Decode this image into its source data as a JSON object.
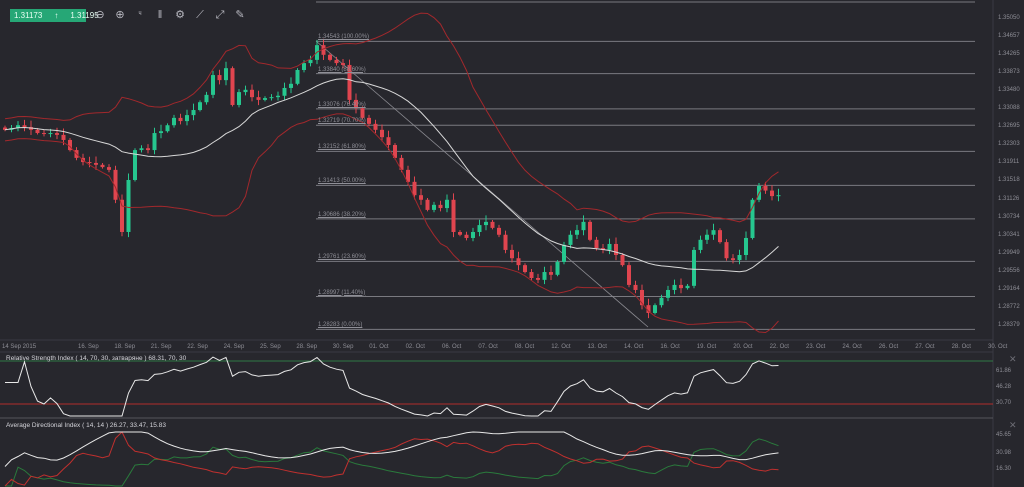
{
  "toolbar": {
    "bid": "1.31173",
    "arrow": "↑",
    "ask": "1.31195",
    "tools": [
      "zoom-out-icon",
      "zoom-in-icon",
      "indicator-icon",
      "candles-icon",
      "gear-icon",
      "chart-draw-icon",
      "line-tool-icon",
      "eraser-icon"
    ]
  },
  "colors": {
    "background": "#27272d",
    "up": "#26c78f",
    "down": "#e0454f",
    "band": "#a2282c",
    "sma": "#d8d8d8",
    "grid": "#7a7a80",
    "rsi_upper": "#2f7a45",
    "rsi_lower": "#b12c2c",
    "adx": "#e8e8e8",
    "di_plus": "#2a7a3c",
    "di_minus": "#c0302e",
    "accent": "#26a776"
  },
  "chart_data": [
    {
      "type": "candlestick",
      "price_axis_ticks": [
        "1.35050",
        "1.34657",
        "1.34265",
        "1.33873",
        "1.33480",
        "1.33088",
        "1.32695",
        "1.32303",
        "1.31911",
        "1.31518",
        "1.31126",
        "1.30734",
        "1.30341",
        "1.29949",
        "1.29556",
        "1.29164",
        "1.28772",
        "1.28379"
      ],
      "date_axis_ticks": [
        "14 Sep 2015",
        "16. Sep",
        "18. Sep",
        "21. Sep",
        "22. Sep",
        "24. Sep",
        "25. Sep",
        "28. Sep",
        "30. Sep",
        "01. Oct",
        "02. Oct",
        "06. Oct",
        "07. Oct",
        "08. Oct",
        "12. Oct",
        "13. Oct",
        "14. Oct",
        "16. Oct",
        "19. Oct",
        "20. Oct",
        "22. Oct",
        "23. Oct",
        "24. Oct",
        "26. Oct",
        "27. Oct",
        "28. Oct",
        "30. Oct"
      ],
      "ylim": [
        1.283,
        1.354
      ],
      "closes": [
        1.3262,
        1.3266,
        1.3272,
        1.3268,
        1.3262,
        1.3255,
        1.3253,
        1.3255,
        1.3251,
        1.324,
        1.3218,
        1.3201,
        1.3192,
        1.319,
        1.3186,
        1.3181,
        1.3175,
        1.311,
        1.304,
        1.3153,
        1.3218,
        1.3222,
        1.3218,
        1.3255,
        1.3259,
        1.3272,
        1.3288,
        1.3281,
        1.3294,
        1.3305,
        1.3322,
        1.3338,
        1.3381,
        1.337,
        1.3396,
        1.3316,
        1.3344,
        1.3349,
        1.3333,
        1.3327,
        1.3331,
        1.3333,
        1.3336,
        1.3353,
        1.3362,
        1.3392,
        1.3407,
        1.3414,
        1.3446,
        1.3425,
        1.3414,
        1.3407,
        1.3403,
        1.3327,
        1.3309,
        1.3288,
        1.3275,
        1.3262,
        1.3246,
        1.3229,
        1.3201,
        1.3175,
        1.3149,
        1.312,
        1.311,
        1.3088,
        1.3099,
        1.3092,
        1.311,
        1.304,
        1.3034,
        1.3027,
        1.304,
        1.3055,
        1.3062,
        1.3049,
        1.3034,
        1.3001,
        1.2983,
        1.2968,
        1.2953,
        1.294,
        1.2936,
        1.2953,
        1.2947,
        1.2975,
        1.3012,
        1.3034,
        1.3044,
        1.3062,
        1.3023,
        1.3005,
        1.3001,
        1.3014,
        1.299,
        1.2968,
        1.2925,
        1.2914,
        1.2881,
        1.2864,
        1.2881,
        1.2897,
        1.2914,
        1.2925,
        1.2918,
        1.2923,
        1.3001,
        1.3023,
        1.3034,
        1.3044,
        1.3018,
        1.2983,
        1.2979,
        1.299,
        1.3027,
        1.311,
        1.314,
        1.313,
        1.3118,
        1.312
      ],
      "overlays": [
        "Bollinger Bands",
        "SMA (20)"
      ],
      "fibonacci": [
        {
          "label": "1.34543 (100.00%)",
          "price": 1.34543
        },
        {
          "label": "1.33840 (88.60%)",
          "price": 1.3384
        },
        {
          "label": "1.33076 (76.40%)",
          "price": 1.33076
        },
        {
          "label": "1.32719 (70.70%)",
          "price": 1.32719
        },
        {
          "label": "1.32152 (61.80%)",
          "price": 1.32152
        },
        {
          "label": "1.31413 (50.00%)",
          "price": 1.31413
        },
        {
          "label": "1.30686 (38.20%)",
          "price": 1.30686
        },
        {
          "label": "1.29761 (23.60%)",
          "price": 1.29761
        },
        {
          "label": "1.28997 (11.40%)",
          "price": 1.28997
        },
        {
          "label": "1.28283 (0.00%)",
          "price": 1.28283
        }
      ]
    },
    {
      "type": "line",
      "title": "Relative Strength Index ( 14, 70, 30, затваряне ) 68.31, 70, 30",
      "axis_ticks": [
        "61.86",
        "46.28",
        "30.70"
      ],
      "levels": [
        70,
        30
      ]
    },
    {
      "type": "line",
      "title": "Average Directional Index ( 14, 14 ) 26.27, 33.47, 15.83",
      "axis_ticks": [
        "45.65",
        "30.98",
        "16.30"
      ]
    }
  ]
}
